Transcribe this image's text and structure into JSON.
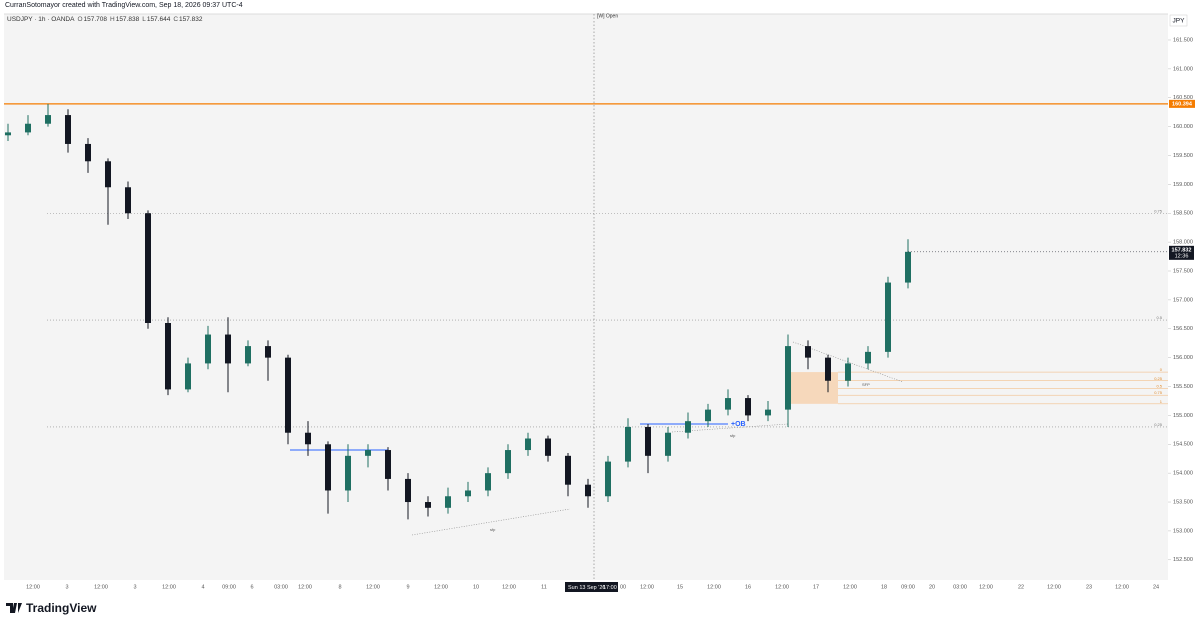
{
  "attribution": "CurranSotomayor created with TradingView.com, Sep 18, 2026 09:37 UTC-4",
  "brand": "TradingView",
  "chart_data": {
    "type": "candlestick",
    "symbol": "USDJPY · 1h · OANDA",
    "legend_ohlc": [
      {
        "label": "O",
        "value": 157.708
      },
      {
        "label": "H",
        "value": 157.838
      },
      {
        "label": "L",
        "value": 157.644
      },
      {
        "label": "C",
        "value": 157.832
      }
    ],
    "currency": "JPY",
    "week_open_label": "[W] Open",
    "crosshair_label": "Sun 13 Sep '26",
    "crosshair_time": "17:00",
    "ylim": [
      152.15,
      161.95
    ],
    "yticks": [
      {
        "value": 152.5,
        "label": "152.500"
      },
      {
        "value": 153,
        "label": "153.000"
      },
      {
        "value": 153.5,
        "label": "153.500"
      },
      {
        "value": 154,
        "label": "154.000"
      },
      {
        "value": 154.5,
        "label": "154.500"
      },
      {
        "value": 155,
        "label": "155.000"
      },
      {
        "value": 155.5,
        "label": "155.500"
      },
      {
        "value": 156,
        "label": "156.000"
      },
      {
        "value": 156.5,
        "label": "156.500"
      },
      {
        "value": 157,
        "label": "157.000"
      },
      {
        "value": 157.5,
        "label": "157.500"
      },
      {
        "value": 158,
        "label": "158.000"
      },
      {
        "value": 158.5,
        "label": "158.500"
      },
      {
        "value": 159,
        "label": "159.000"
      },
      {
        "value": 159.5,
        "label": "159.500"
      },
      {
        "value": 160,
        "label": "160.000"
      },
      {
        "value": 160.5,
        "label": "160.500"
      },
      {
        "value": 161,
        "label": "161.000"
      },
      {
        "value": 161.5,
        "label": "161.500"
      }
    ],
    "x_labels": [
      "12:00",
      "3",
      "12:00",
      "3",
      "12:00",
      "4",
      "09:00",
      "6",
      "03:00",
      "12:00",
      "8",
      "12:00",
      "9",
      "12:00",
      "10",
      "12:00",
      "11",
      "00",
      "12:00",
      "15",
      "12:00",
      "16",
      "12:00",
      "17",
      "12:00",
      "18",
      "09:00",
      "20",
      "03:00",
      "12:00",
      "22",
      "12:00",
      "23",
      "12:00",
      "24"
    ],
    "up_color": "#1f6f62",
    "down_color": "#131722",
    "open": [
      159.85,
      159.9,
      160.05,
      160.2,
      159.7,
      159.4,
      158.95,
      158.5,
      156.6,
      155.45,
      155.9,
      156.4,
      155.9,
      156.2,
      156.0,
      154.7,
      154.5,
      153.7,
      154.3,
      154.4,
      153.9,
      153.5,
      153.4,
      153.6,
      153.7,
      154.0,
      154.4,
      154.6,
      154.3,
      153.8,
      153.6,
      154.2,
      154.8,
      154.3,
      154.7,
      154.9,
      155.1,
      155.3,
      155.0,
      155.1,
      156.2,
      156.0,
      155.6,
      155.9,
      156.1,
      157.3
    ],
    "high": [
      160.05,
      160.2,
      160.394,
      160.3,
      159.8,
      159.45,
      159.05,
      158.55,
      156.7,
      156.0,
      156.55,
      156.7,
      156.3,
      156.3,
      156.05,
      154.9,
      154.55,
      154.5,
      154.5,
      154.45,
      154.0,
      153.6,
      153.75,
      153.85,
      154.1,
      154.5,
      154.7,
      154.65,
      154.35,
      153.9,
      154.3,
      154.95,
      154.85,
      154.8,
      155.05,
      155.2,
      155.45,
      155.35,
      155.25,
      156.4,
      156.3,
      156.05,
      156.0,
      156.2,
      157.4,
      158.05
    ],
    "low": [
      159.75,
      159.85,
      160.0,
      159.55,
      159.2,
      158.3,
      158.4,
      156.5,
      155.35,
      155.4,
      155.8,
      155.4,
      155.85,
      155.6,
      154.5,
      154.3,
      153.3,
      153.5,
      154.1,
      153.7,
      153.2,
      153.25,
      153.3,
      153.5,
      153.6,
      153.9,
      154.3,
      154.2,
      153.6,
      153.4,
      153.5,
      154.1,
      154.0,
      154.2,
      154.6,
      154.8,
      155.0,
      154.9,
      154.9,
      154.8,
      155.8,
      155.4,
      155.5,
      155.8,
      156.0,
      157.2
    ],
    "close": [
      159.9,
      160.05,
      160.2,
      159.7,
      159.4,
      158.95,
      158.5,
      156.6,
      155.45,
      155.9,
      156.4,
      155.9,
      156.2,
      156.0,
      154.7,
      154.5,
      153.7,
      154.3,
      154.4,
      153.9,
      153.5,
      153.4,
      153.6,
      153.7,
      154.0,
      154.4,
      154.6,
      154.3,
      153.8,
      153.6,
      154.2,
      154.8,
      154.3,
      154.7,
      154.9,
      155.1,
      155.3,
      155.0,
      155.1,
      156.2,
      156.0,
      155.6,
      155.9,
      156.1,
      157.3,
      157.832
    ],
    "last_price": 157.832,
    "countdown": "12:36",
    "horizontal_line": {
      "value": 160.394,
      "color": "#f57c00"
    },
    "fib_levels": [
      {
        "value": 158.5,
        "label": "0.75"
      },
      {
        "value": 156.65,
        "label": "0.5"
      },
      {
        "value": 154.8,
        "label": "0.25"
      }
    ],
    "zone": {
      "top": 155.75,
      "bottom": 155.2,
      "color": "#f6d2b0"
    },
    "zone_fib": [
      {
        "value": 155.75,
        "label": "0"
      },
      {
        "value": 155.6,
        "label": "0.25"
      },
      {
        "value": 155.47,
        "label": "0.5"
      },
      {
        "value": 155.35,
        "label": "0.75"
      },
      {
        "value": 155.2,
        "label": "1"
      }
    ],
    "ob_lines": [
      {
        "value": 154.85,
        "label": "+OB",
        "color": "#2962ff"
      },
      {
        "value": 154.4,
        "color": "#2962ff"
      }
    ],
    "annotations": [
      "SFP",
      "sfp",
      "sfp"
    ]
  }
}
